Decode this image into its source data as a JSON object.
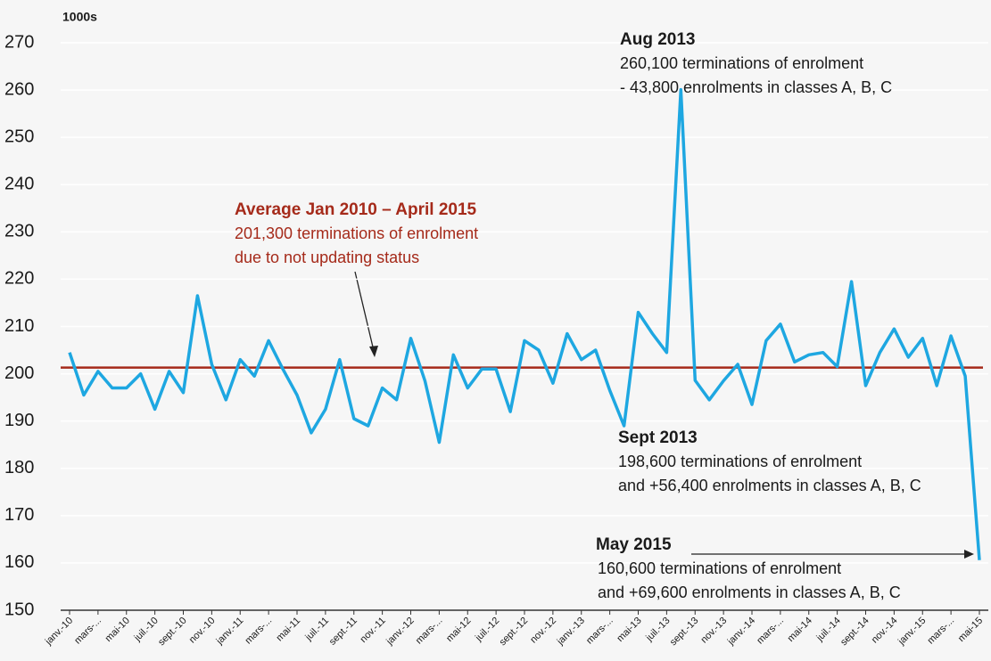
{
  "chart_data": {
    "type": "line",
    "y_label": "1000s",
    "categories": [
      "janv.-10",
      null,
      "mars-...",
      null,
      "mai-10",
      null,
      "juil.-10",
      null,
      "sept.-10",
      null,
      "nov.-10",
      null,
      "janv.-11",
      null,
      "mars-...",
      null,
      "mai-11",
      null,
      "juil.-11",
      null,
      "sept.-11",
      null,
      "nov.-11",
      null,
      "janv.-12",
      null,
      "mars-...",
      null,
      "mai-12",
      null,
      "juil.-12",
      null,
      "sept.-12",
      null,
      "nov.-12",
      null,
      "janv.-13",
      null,
      "mars-...",
      null,
      "mai-13",
      null,
      "juil.-13",
      null,
      "sept.-13",
      null,
      "nov.-13",
      null,
      "janv.-14",
      null,
      "mars-...",
      null,
      "mai-14",
      null,
      "juil.-14",
      null,
      "sept.-14",
      null,
      "nov.-14",
      null,
      "janv.-15",
      null,
      "mars-...",
      null,
      "mai-15"
    ],
    "values": [
      204.5,
      195.5,
      200.5,
      197,
      197,
      200,
      192.5,
      200.5,
      196,
      216.5,
      202,
      194.5,
      203,
      199.5,
      207,
      201,
      195.5,
      187.5,
      192.5,
      203,
      190.5,
      189,
      197,
      194.5,
      207.5,
      198.5,
      185.5,
      204,
      197,
      201,
      201,
      192,
      207,
      205,
      198,
      208.5,
      203,
      205,
      196.5,
      189,
      213,
      208.5,
      204.5,
      260.1,
      198.6,
      194.5,
      198.5,
      202,
      193.5,
      207,
      210.5,
      202.5,
      204,
      204.5,
      201.5,
      219.5,
      197.5,
      204.5,
      209.5,
      203.5,
      207.5,
      197.5,
      208,
      199.5,
      160.6
    ],
    "color": "#1ea7e1",
    "average_line": {
      "value": 201.3,
      "color": "#a52a1a"
    },
    "ylim": [
      150,
      270
    ],
    "yticks": [
      150,
      160,
      170,
      180,
      190,
      200,
      210,
      220,
      230,
      240,
      250,
      260,
      270
    ],
    "grid": true,
    "annotations": [
      {
        "title": "Aug 2013",
        "lines": [
          "260,100 terminations of enrolment",
          "- 43,800 enrolments in classes A, B, C"
        ]
      },
      {
        "title": "Average Jan 2010 – April 2015",
        "lines": [
          "201,300 terminations of enrolment",
          "due to not updating status"
        ]
      },
      {
        "title": "Sept 2013",
        "lines": [
          "198,600 terminations of enrolment",
          "and +56,400 enrolments in classes A, B, C"
        ]
      },
      {
        "title": "May 2015",
        "lines": [
          "160,600 terminations of enrolment",
          "and +69,600 enrolments in classes A, B, C"
        ]
      }
    ]
  }
}
